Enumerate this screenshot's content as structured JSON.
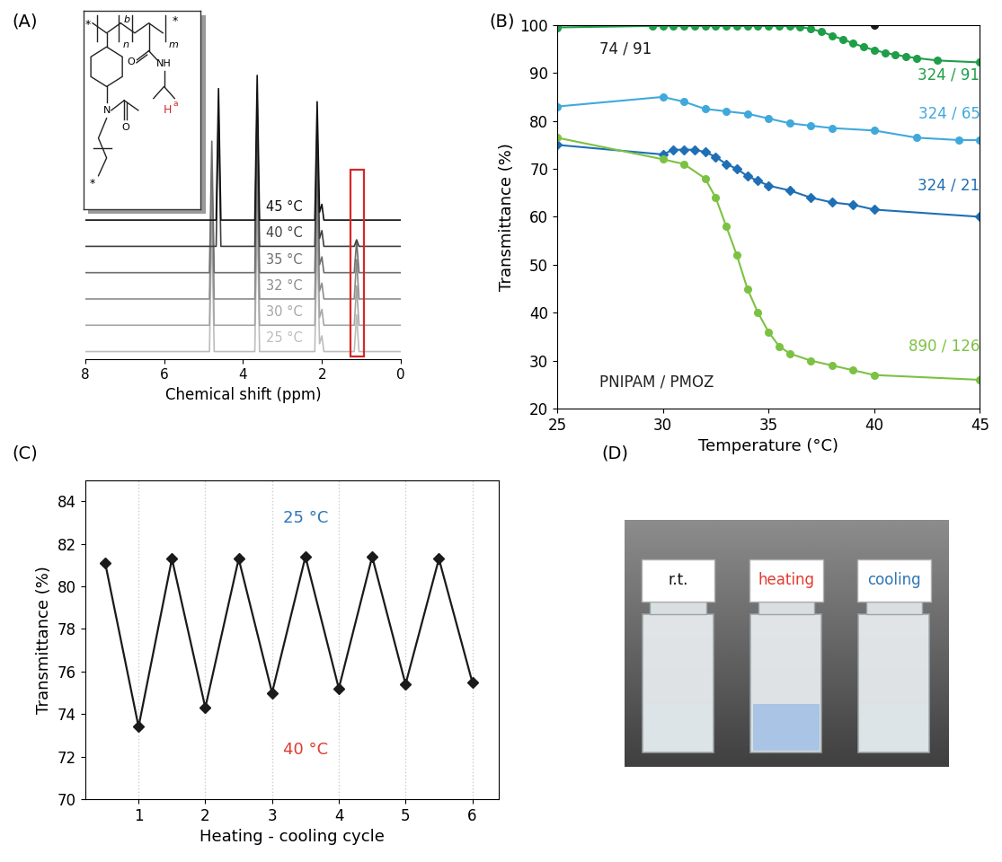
{
  "chart_data": [
    {
      "panel": "(A)",
      "type": "line",
      "x_label": "Chemical shift (ppm)",
      "xlim": [
        8,
        0
      ],
      "xticks": [
        8,
        6,
        4,
        2,
        0
      ],
      "ylim": [
        -0.3,
        11.5
      ],
      "tick_labels": "x",
      "series": [
        {
          "name": "25 °C",
          "color": "#bdbdbd",
          "x": [
            8,
            4.85,
            4.79,
            4.73,
            3.7,
            3.64,
            3.58,
            2.18,
            2.12,
            2.06,
            2.0,
            1.95,
            1.18,
            1.12,
            1.06,
            0
          ],
          "values": [
            0,
            0,
            5,
            0,
            0,
            5.5,
            0,
            0,
            4.5,
            0.3,
            0.6,
            0,
            0,
            1.4,
            0,
            0
          ]
        },
        {
          "name": "30 °C",
          "color": "#a6a6a6",
          "x": [
            8,
            4.85,
            4.79,
            4.73,
            3.7,
            3.64,
            3.58,
            2.18,
            2.12,
            2.06,
            2.0,
            1.95,
            1.18,
            1.12,
            1.06,
            0
          ],
          "values": [
            1,
            1,
            6,
            1,
            1,
            6.5,
            1,
            1,
            5.5,
            1.3,
            1.6,
            1,
            1,
            2.5,
            1,
            1
          ]
        },
        {
          "name": "32 °C",
          "color": "#8c8c8c",
          "x": [
            8,
            4.85,
            4.79,
            4.73,
            3.7,
            3.64,
            3.58,
            2.18,
            2.12,
            2.06,
            2.0,
            1.95,
            1.18,
            1.12,
            1.06,
            0
          ],
          "values": [
            2,
            2,
            7,
            2,
            2,
            7.5,
            2,
            2,
            6.5,
            2.3,
            2.6,
            2,
            2,
            3.5,
            2,
            2
          ]
        },
        {
          "name": "35 °C",
          "color": "#6e6e6e",
          "x": [
            8,
            4.85,
            4.79,
            4.73,
            3.7,
            3.64,
            3.58,
            2.18,
            2.12,
            2.06,
            2.0,
            1.95,
            1.18,
            1.12,
            1.06,
            0
          ],
          "values": [
            3,
            3,
            8,
            3,
            3,
            8.5,
            3,
            3,
            7.5,
            3.3,
            3.6,
            3,
            3,
            4.2,
            3,
            3
          ]
        },
        {
          "name": "40 °C",
          "color": "#404040",
          "x": [
            8,
            4.68,
            4.62,
            4.56,
            3.7,
            3.64,
            3.58,
            2.18,
            2.12,
            2.06,
            2.0,
            1.95,
            1.18,
            1.12,
            1.06,
            0
          ],
          "values": [
            4,
            4,
            9,
            4,
            4,
            9.5,
            4,
            4,
            8.5,
            4.3,
            4.6,
            4,
            4,
            4.25,
            4,
            4
          ]
        },
        {
          "name": "45 °C",
          "color": "#111111",
          "x": [
            8,
            4.68,
            4.62,
            4.56,
            3.7,
            3.64,
            3.58,
            2.18,
            2.12,
            2.06,
            2.0,
            1.95,
            1.18,
            1.12,
            1.06,
            0
          ],
          "values": [
            5,
            5,
            10,
            5,
            5,
            10.5,
            5,
            5,
            9.5,
            5.3,
            5.6,
            5,
            5,
            5,
            5,
            5
          ]
        }
      ],
      "structure": {
        "star": "*",
        "n": "n",
        "block": "b",
        "m": "m",
        "oxygen": "O",
        "amide": "NH",
        "nitrogen": "N",
        "h_atom": "H",
        "h_sup": "a",
        "h_color": "#d62728"
      }
    },
    {
      "panel": "(B)",
      "type": "line",
      "x_label": "Temperature (°C)",
      "y_label": "Transmittance (%)",
      "xlim": [
        25,
        45
      ],
      "xticks": [
        25,
        30,
        35,
        40,
        45
      ],
      "ylim": [
        20,
        100
      ],
      "yticks": [
        20,
        30,
        40,
        50,
        60,
        70,
        80,
        90,
        100
      ],
      "annotations": [
        "PNIPAM / PMOZ"
      ],
      "series": [
        {
          "name": "74 / 91",
          "color": "#1a1a1a",
          "marker": "circle",
          "line_style": "solid",
          "x": [
            25,
            40
          ],
          "values": [
            100,
            100
          ]
        },
        {
          "name": "324 / 91",
          "color": "#1e9e48",
          "marker": "circle",
          "line_style": "solid",
          "x": [
            25,
            29.5,
            30,
            30.5,
            31,
            31.5,
            32,
            32.5,
            33,
            33.5,
            34,
            34.5,
            35,
            35.5,
            36,
            36.5,
            37,
            37.5,
            38,
            38.5,
            39,
            39.5,
            40,
            40.5,
            41,
            41.5,
            42,
            43,
            45
          ],
          "values": [
            99.5,
            99.8,
            99.8,
            99.8,
            99.8,
            99.8,
            99.8,
            99.8,
            99.8,
            99.8,
            99.8,
            99.8,
            99.8,
            99.8,
            99.8,
            99.6,
            99.2,
            98.6,
            97.8,
            97.0,
            96.2,
            95.4,
            94.8,
            94.2,
            93.8,
            93.4,
            93.1,
            92.6,
            92.2
          ]
        },
        {
          "name": "324 / 65",
          "color": "#3fa9dc",
          "marker": "circle",
          "line_style": "solid",
          "x": [
            25,
            30,
            31,
            32,
            33,
            34,
            35,
            36,
            37,
            38,
            40,
            42,
            44,
            45
          ],
          "values": [
            83,
            85,
            84,
            82.5,
            82,
            81.5,
            80.5,
            79.5,
            79,
            78.5,
            78,
            76.5,
            76,
            76
          ]
        },
        {
          "name": "324 / 21",
          "color": "#1f6fb5",
          "marker": "diamond",
          "line_style": "solid",
          "x": [
            25,
            30,
            30.5,
            31,
            31.5,
            32,
            32.5,
            33,
            33.5,
            34,
            34.5,
            35,
            36,
            37,
            38,
            39,
            40,
            45
          ],
          "values": [
            75,
            73,
            74,
            74,
            74,
            73.5,
            72.5,
            71,
            70,
            68.5,
            67.5,
            66.5,
            65.5,
            64,
            63,
            62.5,
            61.5,
            60
          ]
        },
        {
          "name": "890 / 126",
          "color": "#7cc242",
          "marker": "circle",
          "line_style": "solid",
          "x": [
            25,
            30,
            31,
            32,
            32.5,
            33,
            33.5,
            34,
            34.5,
            35,
            35.5,
            36,
            37,
            38,
            39,
            40,
            45
          ],
          "values": [
            76.5,
            72,
            71,
            68,
            64,
            58,
            52,
            45,
            40,
            36,
            33,
            31.5,
            30,
            29,
            28,
            27,
            26
          ]
        }
      ]
    },
    {
      "panel": "(C)",
      "type": "line",
      "x_label": "Heating - cooling cycle",
      "y_label": "Transmittance (%)",
      "xlim": [
        0.2,
        6.4
      ],
      "xticks": [
        1,
        2,
        3,
        4,
        5,
        6
      ],
      "ylim": [
        70,
        85
      ],
      "yticks": [
        70,
        72,
        74,
        76,
        78,
        80,
        82,
        84
      ],
      "grid": true,
      "color": "#1a1a1a",
      "marker": "diamond",
      "line_style": "solid",
      "x": [
        0.5,
        1,
        1.5,
        2,
        2.5,
        3,
        3.5,
        4,
        4.5,
        5,
        5.5,
        6
      ],
      "values": [
        81.1,
        73.4,
        81.3,
        74.3,
        81.3,
        75.0,
        81.4,
        75.2,
        81.4,
        75.4,
        81.3,
        75.5
      ],
      "annotations": [
        {
          "text": "25 °C",
          "color": "#2e75b6"
        },
        {
          "text": "40 °C",
          "color": "#e03c31"
        }
      ]
    }
  ],
  "photo": {
    "panel": "(D)",
    "labels": [
      {
        "text": "r.t.",
        "color": "#111111"
      },
      {
        "text": "heating",
        "color": "#e03c31"
      },
      {
        "text": "cooling",
        "color": "#2e75b6"
      }
    ]
  }
}
